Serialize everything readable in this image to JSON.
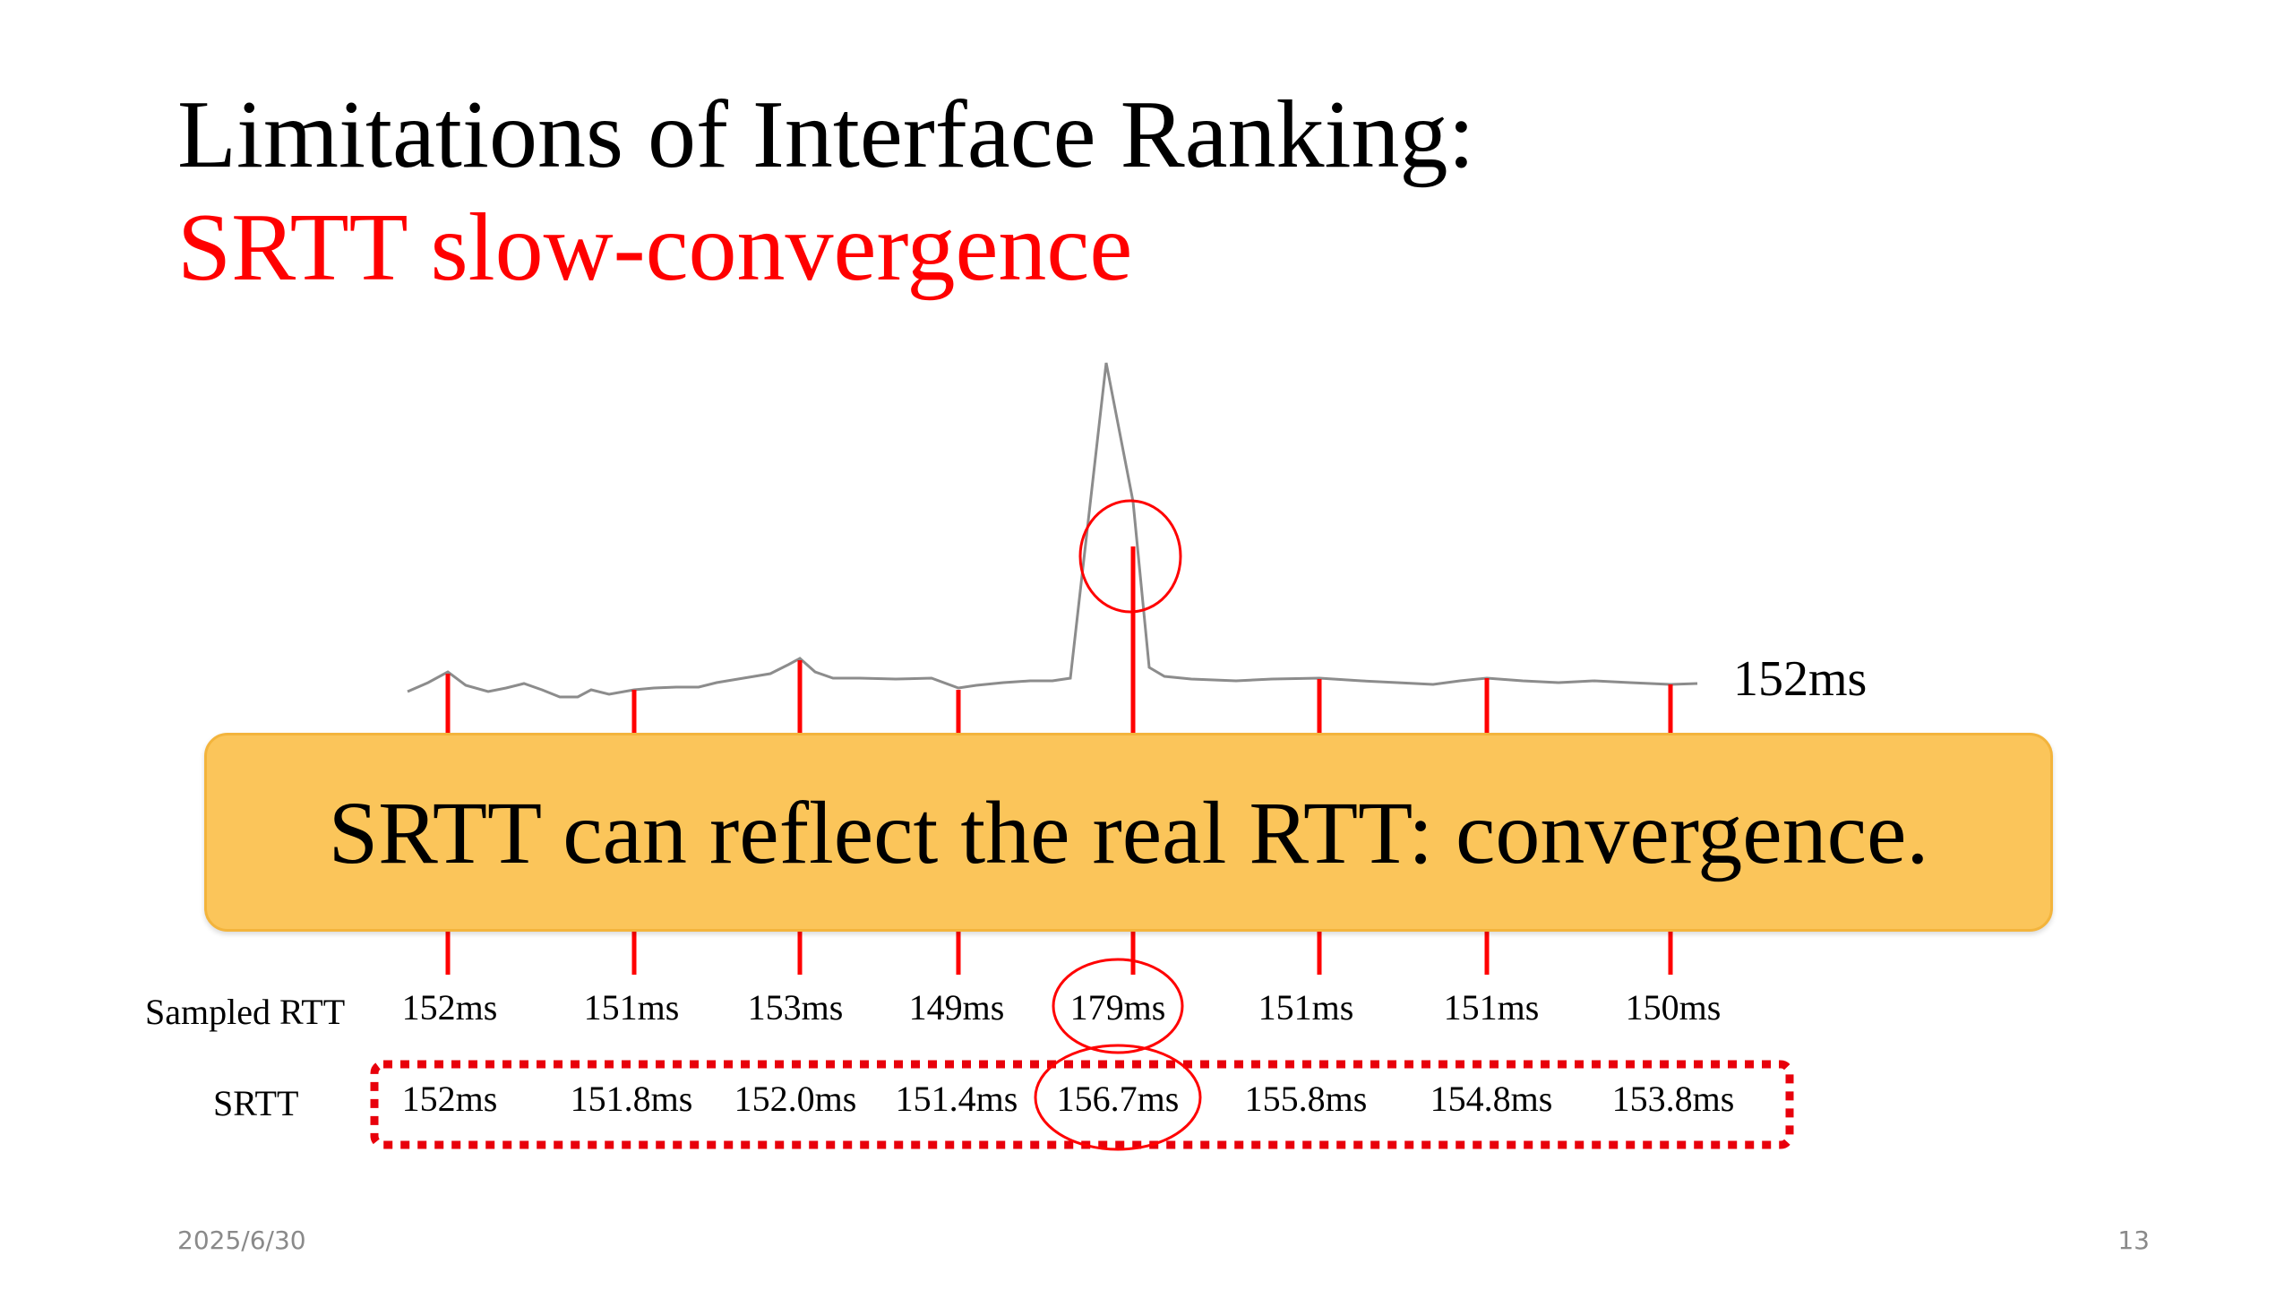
{
  "slide": {
    "title": "Limitations of Interface Ranking:",
    "subtitle": "SRTT slow-convergence",
    "subtitle_color": "#ff0000",
    "callout_text": "SRTT can reflect the real RTT: convergence.",
    "callout_color": "#fbc55a",
    "date": "2025/6/30",
    "page_number": "13"
  },
  "chart_data": {
    "type": "line",
    "end_label": "152ms",
    "row_labels": {
      "sampled": "Sampled RTT",
      "srtt": "SRTT"
    },
    "samples": [
      {
        "sampled": "152ms",
        "srtt": "152ms"
      },
      {
        "sampled": "151ms",
        "srtt": "151.8ms"
      },
      {
        "sampled": "153ms",
        "srtt": "152.0ms"
      },
      {
        "sampled": "149ms",
        "srtt": "151.4ms"
      },
      {
        "sampled": "179ms",
        "srtt": "156.7ms"
      },
      {
        "sampled": "151ms",
        "srtt": "155.8ms"
      },
      {
        "sampled": "151ms",
        "srtt": "154.8ms"
      },
      {
        "sampled": "150ms",
        "srtt": "153.8ms"
      }
    ],
    "highlighted_sample_index": 4,
    "marker_color": "#ff0000",
    "line_color": "#8c8c8c"
  }
}
